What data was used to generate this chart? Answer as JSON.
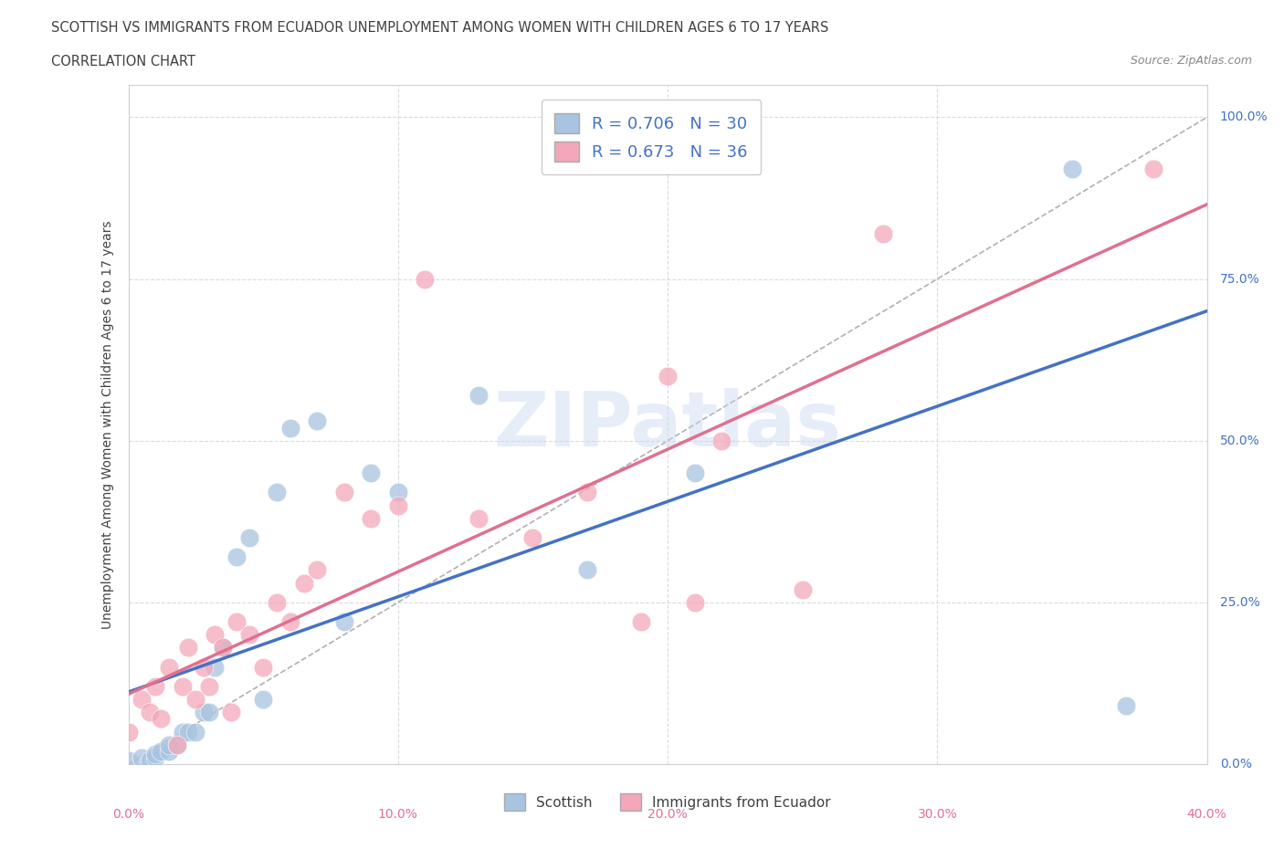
{
  "title_line1": "SCOTTISH VS IMMIGRANTS FROM ECUADOR UNEMPLOYMENT AMONG WOMEN WITH CHILDREN AGES 6 TO 17 YEARS",
  "title_line2": "CORRELATION CHART",
  "source": "Source: ZipAtlas.com",
  "ylabel": "Unemployment Among Women with Children Ages 6 to 17 years",
  "x_lim": [
    0.0,
    0.4
  ],
  "y_lim": [
    0.0,
    1.05
  ],
  "watermark_text": "ZIPatlas",
  "scottish_color": "#a8c4e0",
  "ecuador_color": "#f4a7b9",
  "scottish_line_color": "#4472c4",
  "ecuador_line_color": "#e07090",
  "diag_line_color": "#b0b0b0",
  "R_scottish": 0.706,
  "N_scottish": 30,
  "R_ecuador": 0.673,
  "N_ecuador": 36,
  "scottish_x": [
    0.0,
    0.005,
    0.008,
    0.01,
    0.01,
    0.012,
    0.015,
    0.015,
    0.018,
    0.02,
    0.022,
    0.025,
    0.028,
    0.03,
    0.032,
    0.035,
    0.04,
    0.045,
    0.05,
    0.055,
    0.06,
    0.07,
    0.08,
    0.09,
    0.1,
    0.13,
    0.17,
    0.21,
    0.35,
    0.37
  ],
  "scottish_y": [
    0.005,
    0.01,
    0.005,
    0.01,
    0.015,
    0.02,
    0.02,
    0.03,
    0.03,
    0.05,
    0.05,
    0.05,
    0.08,
    0.08,
    0.15,
    0.18,
    0.32,
    0.35,
    0.1,
    0.42,
    0.52,
    0.53,
    0.22,
    0.45,
    0.42,
    0.57,
    0.3,
    0.45,
    0.92,
    0.09
  ],
  "ecuador_x": [
    0.0,
    0.005,
    0.008,
    0.01,
    0.012,
    0.015,
    0.018,
    0.02,
    0.022,
    0.025,
    0.028,
    0.03,
    0.032,
    0.035,
    0.038,
    0.04,
    0.045,
    0.05,
    0.055,
    0.06,
    0.065,
    0.07,
    0.08,
    0.09,
    0.1,
    0.11,
    0.13,
    0.15,
    0.17,
    0.19,
    0.2,
    0.21,
    0.22,
    0.25,
    0.28,
    0.38
  ],
  "ecuador_y": [
    0.05,
    0.1,
    0.08,
    0.12,
    0.07,
    0.15,
    0.03,
    0.12,
    0.18,
    0.1,
    0.15,
    0.12,
    0.2,
    0.18,
    0.08,
    0.22,
    0.2,
    0.15,
    0.25,
    0.22,
    0.28,
    0.3,
    0.42,
    0.38,
    0.4,
    0.75,
    0.38,
    0.35,
    0.42,
    0.22,
    0.6,
    0.25,
    0.5,
    0.27,
    0.82,
    0.92
  ],
  "grid_color": "#d3d3d3",
  "background_color": "#ffffff",
  "title_color": "#404040",
  "tick_color_y": "#4472c4",
  "tick_color_x": "#e07090"
}
